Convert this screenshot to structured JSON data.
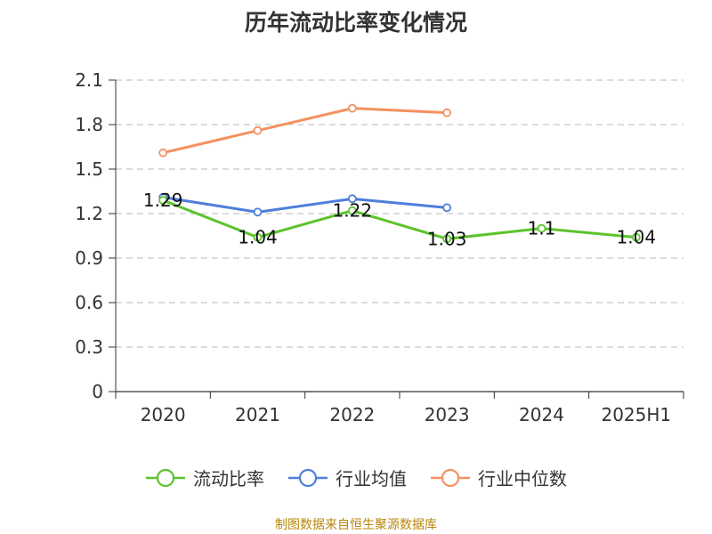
{
  "title": "历年流动比率变化情况",
  "source_note": "制图数据来自恒生聚源数据库",
  "chart_data": {
    "type": "line",
    "title": "历年流动比率变化情况",
    "xlabel": "",
    "ylabel": "",
    "categories": [
      "2020",
      "2021",
      "2022",
      "2023",
      "2024",
      "2025H1"
    ],
    "ylim": [
      0,
      2.1
    ],
    "yticks": [
      "0",
      "0.3",
      "0.6",
      "0.9",
      "1.2",
      "1.5",
      "1.8",
      "2.1"
    ],
    "grid": "horizontal dashed",
    "legend_position": "bottom",
    "series": [
      {
        "name": "流动比率",
        "color": "#5cc32c",
        "values": [
          1.29,
          1.04,
          1.22,
          1.03,
          1.1,
          1.04
        ],
        "labels": [
          "1.29",
          "1.04",
          "1.22",
          "1.03",
          "1.1",
          "1.04"
        ]
      },
      {
        "name": "行业均值",
        "color": "#4f7fdc",
        "values": [
          1.31,
          1.21,
          1.3,
          1.24,
          null,
          null
        ]
      },
      {
        "name": "行业中位数",
        "color": "#f4915f",
        "values": [
          1.61,
          1.76,
          1.91,
          1.88,
          null,
          null
        ]
      }
    ]
  }
}
